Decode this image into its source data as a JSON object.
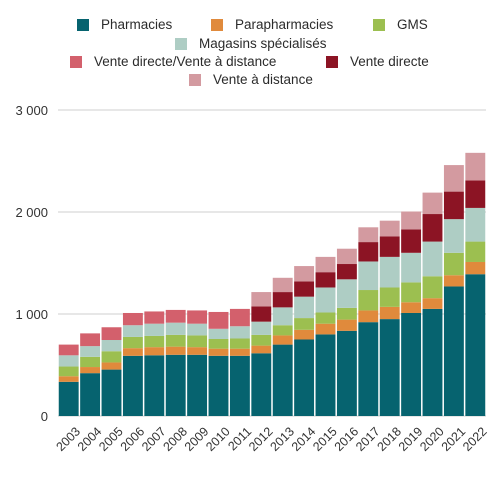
{
  "colors": {
    "pharmacies": "#06636f",
    "parapharmacies": "#e08a3c",
    "gms": "#9cbf50",
    "magasins": "#aecdc4",
    "vente_directe_distance": "#d3606c",
    "vente_directe": "#8c1424",
    "vente_distance": "#d39aa0"
  },
  "chart_data": {
    "type": "bar",
    "stacked": true,
    "title": "",
    "xlabel": "",
    "ylabel": "",
    "ylim": [
      0,
      3000
    ],
    "yticks": [
      0,
      1000,
      2000,
      3000
    ],
    "ytick_labels": [
      "0",
      "1 000",
      "2 000",
      "3 000"
    ],
    "grid": true,
    "legend_position": "top",
    "categories": [
      "2003",
      "2004",
      "2005",
      "2006",
      "2007",
      "2008",
      "2009",
      "2010",
      "2011",
      "2012",
      "2013",
      "2014",
      "2015",
      "2016",
      "2017",
      "2018",
      "2019",
      "2020",
      "2021",
      "2022"
    ],
    "series": [
      {
        "name": "Pharmacies",
        "key": "pharmacies",
        "values": [
          335,
          420,
          455,
          590,
          595,
          600,
          600,
          590,
          590,
          615,
          700,
          750,
          800,
          835,
          920,
          950,
          1010,
          1050,
          1270,
          1390
        ]
      },
      {
        "name": "Parapharmacies",
        "key": "parapharmacies",
        "values": [
          55,
          60,
          70,
          75,
          80,
          80,
          75,
          70,
          70,
          75,
          90,
          95,
          105,
          110,
          115,
          120,
          105,
          105,
          110,
          120
        ]
      },
      {
        "name": "GMS",
        "key": "gms",
        "values": [
          95,
          100,
          110,
          110,
          110,
          115,
          115,
          95,
          100,
          105,
          100,
          115,
          110,
          115,
          200,
          190,
          195,
          215,
          220,
          200
        ]
      },
      {
        "name": "Magasins spécialisés",
        "key": "magasins",
        "values": [
          110,
          105,
          110,
          115,
          120,
          120,
          115,
          100,
          120,
          130,
          175,
          210,
          245,
          280,
          280,
          300,
          290,
          340,
          330,
          330
        ]
      },
      {
        "name": "Vente directe/Vente à distance",
        "key": "vente_directe_distance",
        "values": [
          105,
          125,
          125,
          120,
          120,
          125,
          130,
          165,
          170,
          0,
          0,
          0,
          0,
          0,
          0,
          0,
          0,
          0,
          0,
          0
        ]
      },
      {
        "name": "Vente directe",
        "key": "vente_directe",
        "values": [
          0,
          0,
          0,
          0,
          0,
          0,
          0,
          0,
          0,
          150,
          150,
          150,
          150,
          150,
          190,
          200,
          230,
          270,
          270,
          270
        ]
      },
      {
        "name": "Vente à distance",
        "key": "vente_distance",
        "values": [
          0,
          0,
          0,
          0,
          0,
          0,
          0,
          0,
          0,
          140,
          140,
          150,
          150,
          150,
          145,
          155,
          175,
          210,
          260,
          270
        ]
      }
    ]
  }
}
